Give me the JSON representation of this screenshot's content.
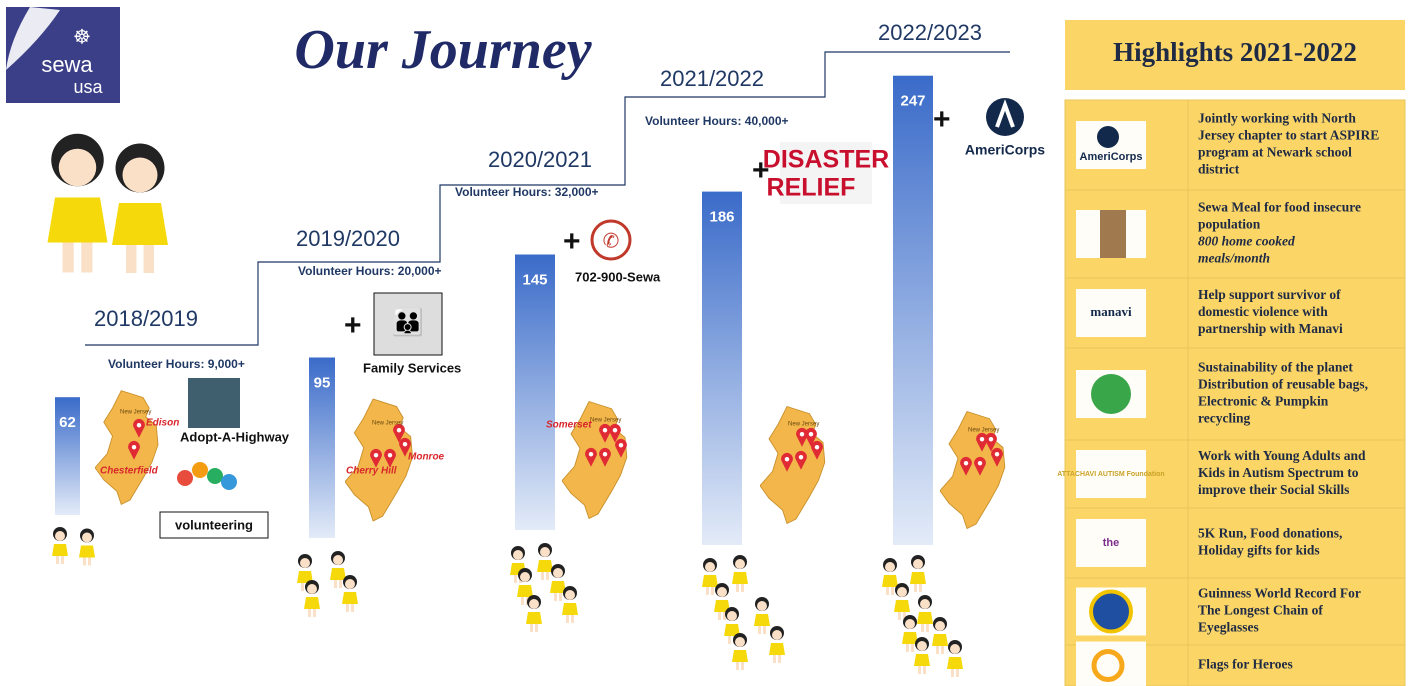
{
  "logo": {
    "name": "sewa",
    "sub": "usa"
  },
  "title": "Our Journey",
  "connector": "+",
  "map_label": "New Jersey",
  "timeline": [
    {
      "year": "2018/2019",
      "hours": "Volunteer Hours: 9,000+",
      "value": 62,
      "features": [
        "Adopt-A-Highway",
        "volunteering"
      ],
      "places": [
        "Edison",
        "Chesterfield"
      ]
    },
    {
      "year": "2019/2020",
      "hours": "Volunteer Hours: 20,000+",
      "value": 95,
      "features": [
        "Family Services"
      ],
      "places": [
        "Cherry Hill",
        "Monroe"
      ]
    },
    {
      "year": "2020/2021",
      "hours": "Volunteer Hours: 32,000+",
      "value": 145,
      "features": [
        "702-900-Sewa"
      ],
      "places": [
        "Somerset"
      ]
    },
    {
      "year": "2021/2022",
      "hours": "Volunteer Hours: 40,000+",
      "value": 186,
      "features": [
        "DISASTER",
        "RELIEF"
      ]
    },
    {
      "year": "2022/2023",
      "value": 247,
      "features": [
        "AmeriCorps"
      ]
    }
  ],
  "highlights": {
    "title": "Highlights 2021-2022",
    "rows": [
      {
        "logo": "AmeriCorps",
        "text": [
          "Jointly working with North",
          "Jersey chapter to start ASPIRE",
          "program at Newark school",
          "district"
        ]
      },
      {
        "text": [
          "Sewa Meal for food insecure",
          "population"
        ],
        "note": [
          "800 home cooked",
          "meals/month"
        ]
      },
      {
        "logo": "manavi",
        "text": [
          "Help support survivor of",
          "domestic violence with",
          "partnership with Manavi"
        ]
      },
      {
        "text": [
          "Sustainability of the planet",
          "Distribution of reusable bags,",
          "Electronic & Pumpkin",
          "recycling"
        ]
      },
      {
        "logo": "ATTACHAVI AUTISM Foundation",
        "text": [
          "Work with Young Adults and",
          "Kids in Autism Spectrum to",
          "improve their Social Skills"
        ]
      },
      {
        "logo": "the",
        "text": [
          "5K Run, Food donations,",
          "Holiday gifts for kids"
        ]
      },
      {
        "text": [
          "Guinness World Record For",
          "The Longest Chain of",
          "Eyeglasses"
        ]
      },
      {
        "text": [
          "Flags for Heroes"
        ]
      }
    ]
  }
}
